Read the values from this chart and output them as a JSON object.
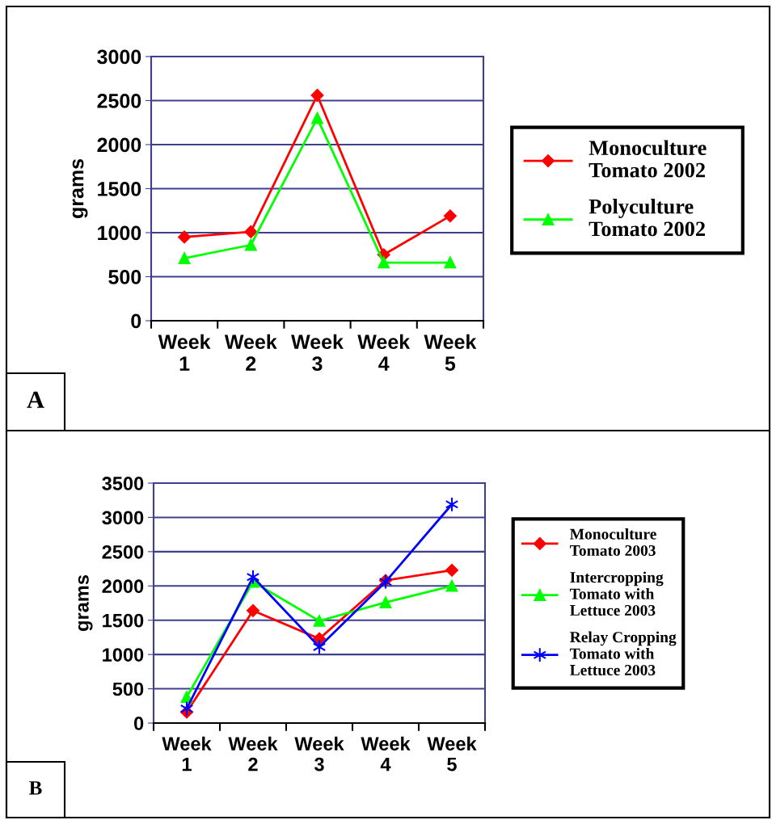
{
  "chart_data": [
    {
      "type": "line",
      "ylabel": "grams",
      "categories": [
        "Week\n1",
        "Week\n2",
        "Week\n3",
        "Week\n4",
        "Week\n5"
      ],
      "ylim": [
        0,
        3000
      ],
      "yticks": [
        0,
        500,
        1000,
        1500,
        2000,
        2500,
        3000
      ],
      "grid": "y",
      "legend": "right",
      "annotations": [
        "A"
      ],
      "series": [
        {
          "name": "Monoculture\nTomato 2002",
          "color": "#ff0000",
          "marker": "diamond",
          "values": [
            950,
            1010,
            2560,
            750,
            1190
          ]
        },
        {
          "name": "Polyculture\nTomato 2002",
          "color": "#00ff00",
          "marker": "triangle",
          "values": [
            710,
            860,
            2300,
            660,
            660
          ]
        }
      ]
    },
    {
      "type": "line",
      "ylabel": "grams",
      "categories": [
        "Week\n1",
        "Week\n2",
        "Week\n3",
        "Week\n4",
        "Week\n5"
      ],
      "ylim": [
        0,
        3500
      ],
      "yticks": [
        0,
        500,
        1000,
        1500,
        2000,
        2500,
        3000,
        3500
      ],
      "grid": "y",
      "legend": "right",
      "annotations": [
        "B"
      ],
      "series": [
        {
          "name": "Monoculture\nTomato 2003",
          "color": "#ff0000",
          "marker": "diamond",
          "values": [
            160,
            1640,
            1230,
            2080,
            2230
          ]
        },
        {
          "name": "Intercropping\nTomato with\nLettuce 2003",
          "color": "#00ff00",
          "marker": "triangle",
          "values": [
            380,
            2060,
            1490,
            1760,
            2000
          ]
        },
        {
          "name": "Relay Cropping\nTomato with\nLettuce 2003",
          "color": "#0000ff",
          "marker": "cross",
          "values": [
            210,
            2130,
            1110,
            2060,
            3190
          ]
        }
      ]
    }
  ]
}
